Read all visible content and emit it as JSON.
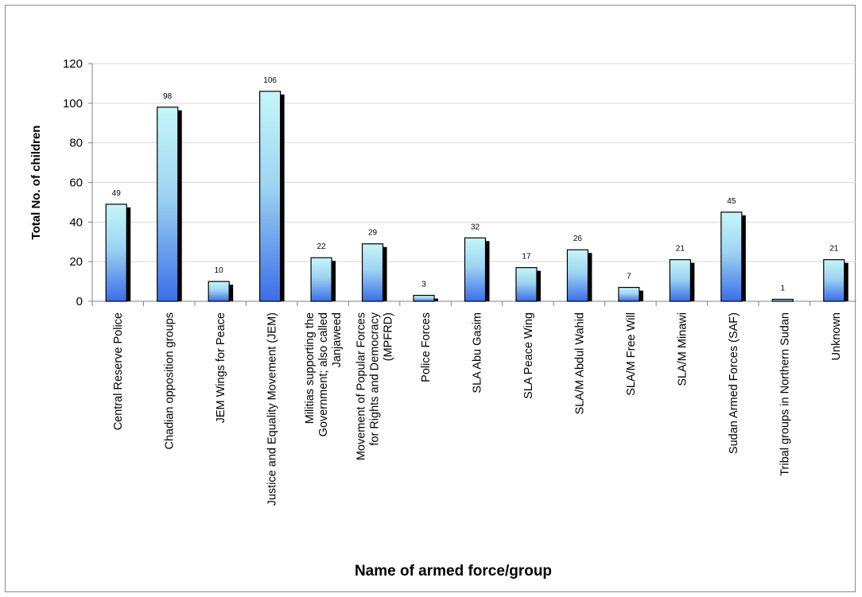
{
  "chart_data": {
    "type": "bar",
    "title": "",
    "xlabel": "Name of armed force/group",
    "ylabel": "Total No. of children",
    "ylim": [
      0,
      120
    ],
    "yticks": [
      0,
      20,
      40,
      60,
      80,
      100,
      120
    ],
    "grid": true,
    "legend": "none",
    "categories": [
      [
        "Central Reserve Police"
      ],
      [
        "Chadian opposition groups"
      ],
      [
        "JEM Wings for Peace"
      ],
      [
        "Justice and Equality Movement (JEM)"
      ],
      [
        "Militias supporting the",
        "Government; also called",
        "Janjaweed"
      ],
      [
        "Movement of Popular Forces",
        "for Rights and Democracy",
        "(MPFRD)"
      ],
      [
        "Police Forces"
      ],
      [
        "SLA Abu Gasim"
      ],
      [
        "SLA Peace Wing"
      ],
      [
        "SLA/M Abdul Wahid"
      ],
      [
        "SLA/M Free Will"
      ],
      [
        "SLA/M Minawi"
      ],
      [
        "Sudan Armed Forces (SAF)"
      ],
      [
        "Tribal groups in Northern Sudan"
      ],
      [
        "Unknown"
      ]
    ],
    "values": [
      49,
      98,
      10,
      106,
      22,
      29,
      3,
      32,
      17,
      26,
      7,
      21,
      45,
      1,
      21
    ],
    "data_labels": [
      "49",
      "98",
      "10",
      "106",
      "22",
      "29",
      "3",
      "32",
      "17",
      "26",
      "7",
      "21",
      "45",
      "1",
      "21"
    ],
    "colors": {
      "bar_top": "#c4f6f8",
      "bar_bottom": "#3a6ee8",
      "bar_outline": "#000000",
      "shadow": "#000000",
      "grid": "#d9d9d9",
      "axis": "#808080"
    }
  }
}
